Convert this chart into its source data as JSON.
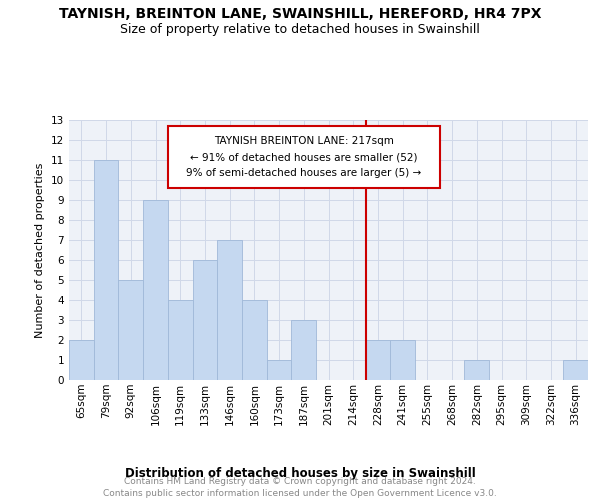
{
  "title": "TAYNISH, BREINTON LANE, SWAINSHILL, HEREFORD, HR4 7PX",
  "subtitle": "Size of property relative to detached houses in Swainshill",
  "xlabel": "Distribution of detached houses by size in Swainshill",
  "ylabel": "Number of detached properties",
  "categories": [
    "65sqm",
    "79sqm",
    "92sqm",
    "106sqm",
    "119sqm",
    "133sqm",
    "146sqm",
    "160sqm",
    "173sqm",
    "187sqm",
    "201sqm",
    "214sqm",
    "228sqm",
    "241sqm",
    "255sqm",
    "268sqm",
    "282sqm",
    "295sqm",
    "309sqm",
    "322sqm",
    "336sqm"
  ],
  "values": [
    2,
    11,
    5,
    9,
    4,
    6,
    7,
    4,
    1,
    3,
    0,
    0,
    2,
    2,
    0,
    0,
    1,
    0,
    0,
    0,
    1
  ],
  "bar_color": "#c5d8f0",
  "bar_edge_color": "#a0b8d8",
  "annotation_title": "TAYNISH BREINTON LANE: 217sqm",
  "annotation_line1": "← 91% of detached houses are smaller (52)",
  "annotation_line2": "9% of semi-detached houses are larger (5) →",
  "annotation_box_color": "#cc0000",
  "ref_line_index": 11,
  "ylim": [
    0,
    13
  ],
  "yticks": [
    0,
    1,
    2,
    3,
    4,
    5,
    6,
    7,
    8,
    9,
    10,
    11,
    12,
    13
  ],
  "footer": "Contains HM Land Registry data © Crown copyright and database right 2024.\nContains public sector information licensed under the Open Government Licence v3.0.",
  "grid_color": "#d0d8e8",
  "background_color": "#eef2f8",
  "title_fontsize": 10,
  "subtitle_fontsize": 9,
  "ylabel_fontsize": 8,
  "tick_fontsize": 7.5,
  "xlabel_fontsize": 8.5,
  "annotation_fontsize": 7.5,
  "footer_fontsize": 6.5
}
